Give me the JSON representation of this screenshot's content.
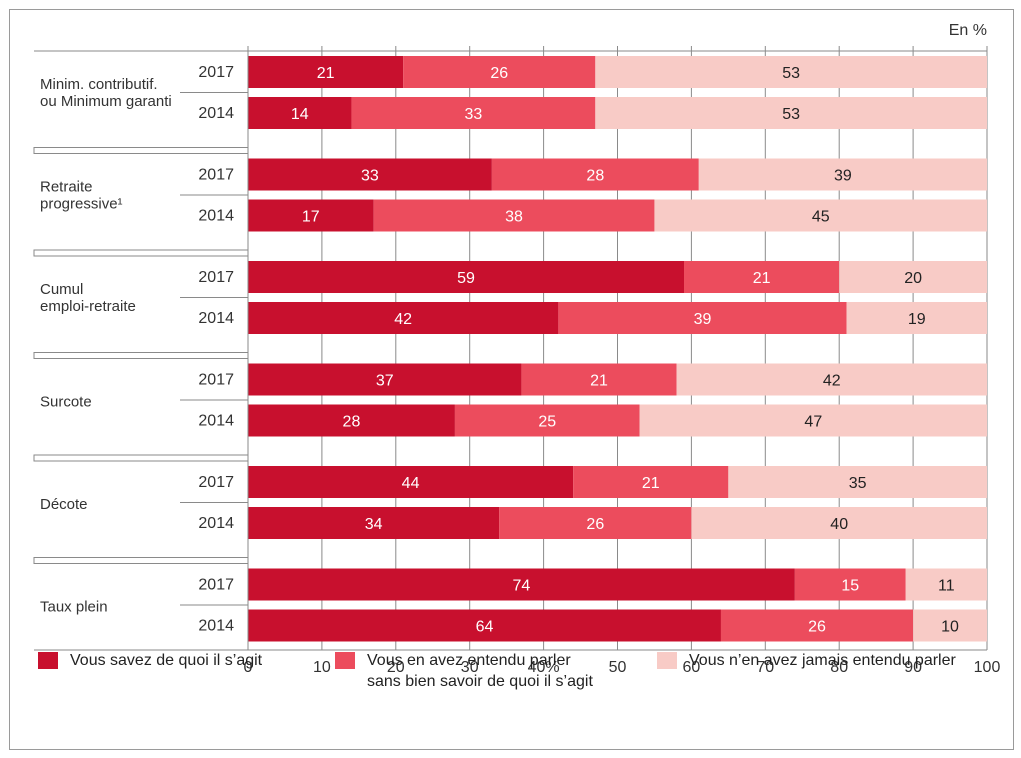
{
  "chart_data": {
    "type": "bar",
    "orientation": "horizontal",
    "stacked": true,
    "unit_label": "En %",
    "xlim": [
      0,
      100
    ],
    "x_ticks": [
      "0",
      "10",
      "20",
      "30",
      "40%",
      "50",
      "60",
      "70",
      "80",
      "90",
      "100"
    ],
    "grid": true,
    "legend_position": "bottom",
    "series": [
      {
        "name": "Vous savez de quoi il s’agit",
        "color": "#c8102e"
      },
      {
        "name_line1": "Vous en avez entendu parler",
        "name_line2": "sans bien savoir de quoi il s’agit",
        "color": "#ec4c5d"
      },
      {
        "name": "Vous n’en avez jamais entendu parler",
        "color": "#f8cbc6"
      }
    ],
    "groups": [
      {
        "label_lines": [
          "Minim. contributif.",
          "ou Minimum garanti"
        ],
        "bars": [
          {
            "year": "2017",
            "values": [
              21,
              26,
              53
            ]
          },
          {
            "year": "2014",
            "values": [
              14,
              33,
              53
            ]
          }
        ]
      },
      {
        "label_lines": [
          "Retraite",
          "progressive¹"
        ],
        "bars": [
          {
            "year": "2017",
            "values": [
              33,
              28,
              39
            ]
          },
          {
            "year": "2014",
            "values": [
              17,
              38,
              45
            ]
          }
        ]
      },
      {
        "label_lines": [
          "Cumul",
          "emploi-retraite"
        ],
        "bars": [
          {
            "year": "2017",
            "values": [
              59,
              21,
              20
            ]
          },
          {
            "year": "2014",
            "values": [
              42,
              39,
              19
            ]
          }
        ]
      },
      {
        "label_lines": [
          "Surcote"
        ],
        "bars": [
          {
            "year": "2017",
            "values": [
              37,
              21,
              42
            ]
          },
          {
            "year": "2014",
            "values": [
              28,
              25,
              47
            ]
          }
        ]
      },
      {
        "label_lines": [
          "Décote"
        ],
        "bars": [
          {
            "year": "2017",
            "values": [
              44,
              21,
              35
            ]
          },
          {
            "year": "2014",
            "values": [
              34,
              26,
              40
            ]
          }
        ]
      },
      {
        "label_lines": [
          "Taux plein"
        ],
        "bars": [
          {
            "year": "2017",
            "values": [
              74,
              15,
              11
            ]
          },
          {
            "year": "2014",
            "values": [
              64,
              26,
              10
            ]
          }
        ]
      }
    ]
  }
}
